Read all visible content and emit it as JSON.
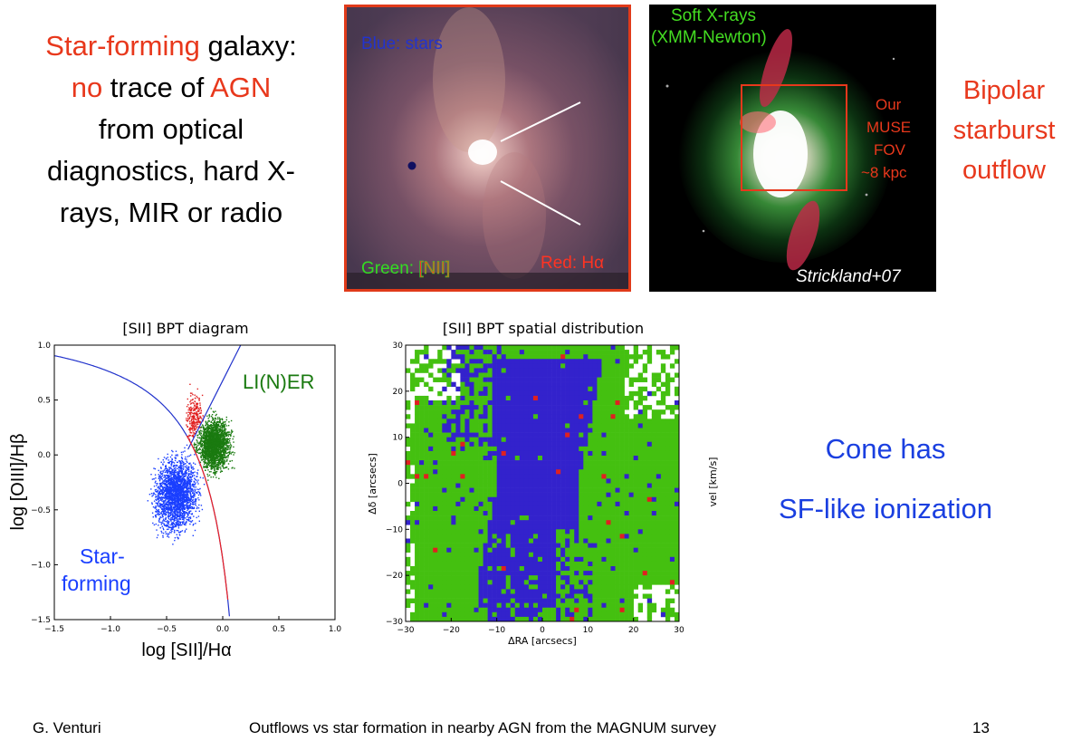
{
  "intro": {
    "line1_a": "Star-forming",
    "line1_b": " galaxy:",
    "line2_a": "no",
    "line2_b": " trace of ",
    "line2_c": "AGN",
    "line3": "from optical",
    "line4": "diagnostics, hard X-",
    "line5": "rays, MIR or radio"
  },
  "muse_image": {
    "label_blue": "Blue: stars",
    "label_green_a": "Green: ",
    "label_green_b": "[NII]",
    "label_red": "Red: Hα"
  },
  "xray_image": {
    "label_top_1": "Soft X-rays",
    "label_top_2": "(XMM-Newton)",
    "fov_1": "Our",
    "fov_2": "MUSE",
    "fov_3": "FOV",
    "fov_4": "~8 kpc",
    "credit": "Strickland+07"
  },
  "outflow": {
    "line1": "Bipolar",
    "line2": "starburst",
    "line3": "outflow"
  },
  "chart_data": [
    {
      "type": "scatter",
      "title": "[SII] BPT diagram",
      "xlabel": "log [SII]/Hα",
      "ylabel": "log [OIII]/Hβ",
      "xlim": [
        -1.5,
        1.0
      ],
      "ylim": [
        -1.5,
        1.0
      ],
      "xticks": [
        "−1.5",
        "−1.0",
        "−0.5",
        "0.0",
        "0.5",
        "1.0"
      ],
      "yticks": [
        "1.0",
        "0.5",
        "0.0",
        "−0.5",
        "−1.0",
        "−1.5"
      ],
      "annotations": [
        "LI(N)ER",
        "Star-",
        "forming"
      ],
      "series_colors": {
        "star_forming": "#1a3fff",
        "liner": "#1a7a10",
        "seyfert": "#e02020"
      }
    },
    {
      "type": "heatmap",
      "title": "[SII] BPT spatial distribution",
      "xlabel": "ΔRA [arcsecs]",
      "ylabel": "Δδ [arcsecs]",
      "xlim": [
        -30,
        30
      ],
      "ylim": [
        -30,
        30
      ],
      "xticks": [
        "−30",
        "−20",
        "−10",
        "0",
        "10",
        "20",
        "30"
      ],
      "yticks": [
        "30",
        "20",
        "10",
        "0",
        "−10",
        "−20",
        "−30"
      ],
      "extra_label": "vel [km/s]",
      "colors": {
        "star_forming": "#3322cc",
        "liner": "#44c010",
        "seyfert": "#e02020"
      }
    }
  ],
  "cone": {
    "line1": "Cone has",
    "line2": "SF-like ionization"
  },
  "footer": {
    "author": "G. Venturi",
    "title": "Outflows vs star formation in nearby AGN from the MAGNUM survey",
    "page": "13"
  }
}
